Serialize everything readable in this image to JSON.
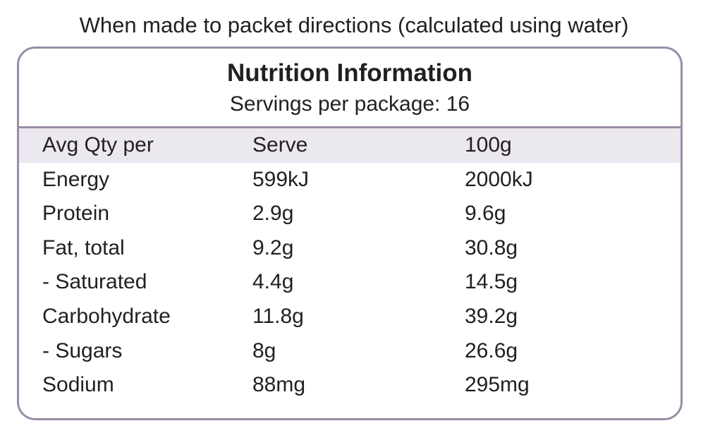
{
  "caption": "When made to packet directions (calculated using water)",
  "panel": {
    "title": "Nutrition Information",
    "servings": "Servings per package: 16"
  },
  "table": {
    "headers": [
      "Avg Qty per",
      "Serve",
      "100g"
    ],
    "rows": [
      [
        "Energy",
        "599kJ",
        "2000kJ"
      ],
      [
        "Protein",
        "2.9g",
        "9.6g"
      ],
      [
        "Fat, total",
        "9.2g",
        "30.8g"
      ],
      [
        "- Saturated",
        "4.4g",
        "14.5g"
      ],
      [
        "Carbohydrate",
        "11.8g",
        "39.2g"
      ],
      [
        "- Sugars",
        "8g",
        "26.6g"
      ],
      [
        "Sodium",
        "88mg",
        "295mg"
      ]
    ]
  },
  "colors": {
    "border": "#9a8da6",
    "header_band": "#ebe8ef",
    "text": "#231f20"
  }
}
